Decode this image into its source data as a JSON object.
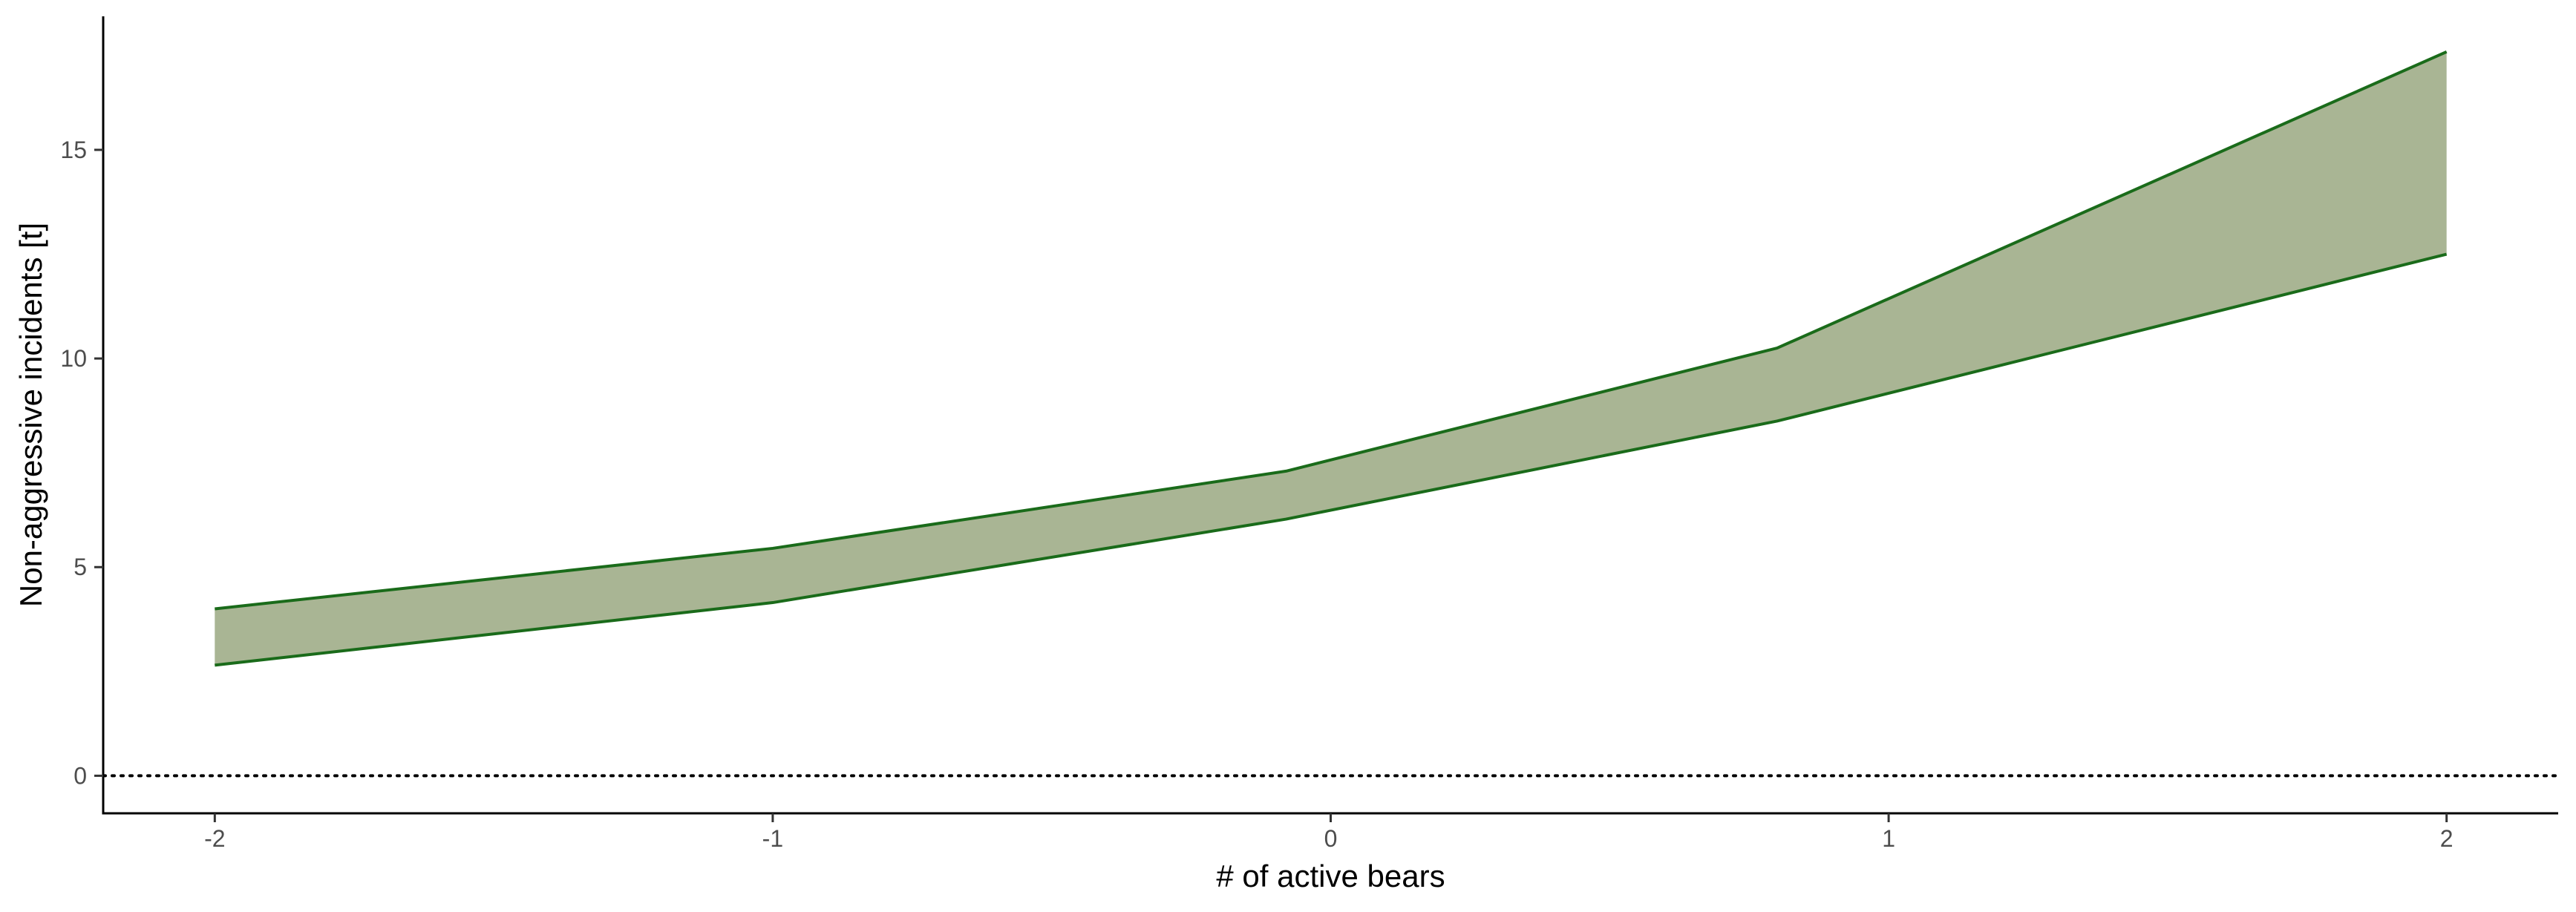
{
  "chart_data": {
    "type": "area",
    "title": "",
    "xlabel": "# of active bears",
    "ylabel": "Non-aggressive incidents [t]",
    "xlim": [
      -2.2,
      2.2
    ],
    "ylim": [
      -0.9,
      18.2
    ],
    "x_ticks": [
      -2,
      -1,
      0,
      1,
      2
    ],
    "x_tick_labels": [
      "-2",
      "-1",
      "0",
      "1",
      "2"
    ],
    "y_ticks": [
      0,
      5,
      10,
      15
    ],
    "y_tick_labels": [
      "0",
      "5",
      "10",
      "15"
    ],
    "reference_line": {
      "y": 0,
      "style": "dotted",
      "color": "#000000"
    },
    "grid": false,
    "series": [
      {
        "kind": "ribbon",
        "fill": "#a9b594",
        "line_color": "#1a6b1a",
        "x": [
          -2.0,
          -1.0,
          -0.08,
          0.8,
          2.0
        ],
        "upper": [
          4.0,
          5.45,
          7.3,
          10.25,
          17.35
        ],
        "lower": [
          2.65,
          4.15,
          6.15,
          8.5,
          12.5
        ]
      }
    ]
  }
}
